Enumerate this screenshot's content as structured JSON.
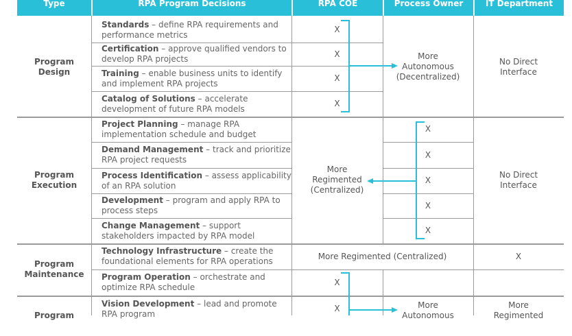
{
  "headers": [
    "Type",
    "RPA Program Decisions",
    "RPA COE",
    "Process Owner",
    "IT Department"
  ],
  "groups": {
    "design": {
      "type": "Program\nDesign",
      "process_owner": "More Autonomous (Decentralized)",
      "it": "No Direct Interface"
    },
    "execution": {
      "type": "Program\nExecution",
      "coe": "More Regimented (Centralized)",
      "it": "No Direct Interface"
    },
    "maintenance": {
      "type": "Program\nMaintenance",
      "merged": "More Regimented (Centralized)",
      "it_x": "X"
    },
    "next": {
      "type": "Program",
      "process_owner": "More Autonomous",
      "it": "More Regimented"
    }
  },
  "decisions": [
    {
      "title": "Standards",
      "desc": "define RPA requirements and performance metrics",
      "mark": "X"
    },
    {
      "title": "Certification",
      "desc": "approve qualified vendors to develop RPA projects",
      "mark": "X"
    },
    {
      "title": "Training",
      "desc": "enable business units to identify and implement RPA projects",
      "mark": "X"
    },
    {
      "title": "Catalog of Solutions",
      "desc": "accelerate development of future RPA models",
      "mark": "X"
    },
    {
      "title": "Project Planning",
      "desc": "manage RPA implementation schedule and budget",
      "mark": "X"
    },
    {
      "title": "Demand Management",
      "desc": "track and prioritize RPA project requests",
      "mark": "X"
    },
    {
      "title": "Process Identification",
      "desc": "assess applicability of an RPA solution",
      "mark": "X"
    },
    {
      "title": "Development",
      "desc": "program and apply RPA to process steps",
      "mark": "X"
    },
    {
      "title": "Change Management",
      "desc": "support stakeholders impacted by RPA model",
      "mark": "X"
    },
    {
      "title": "Technology Infrastructure",
      "desc": "create the foundational elements for RPA operations",
      "mark": ""
    },
    {
      "title": "Program Operation",
      "desc": "orchestrate and optimize RPA schedule",
      "mark": "X"
    },
    {
      "title": "Vision Development",
      "desc": "lead and promote RPA program",
      "mark": "X"
    }
  ],
  "sep": " – ",
  "colors": {
    "accent": "#29bfd9",
    "line": "#999999"
  }
}
